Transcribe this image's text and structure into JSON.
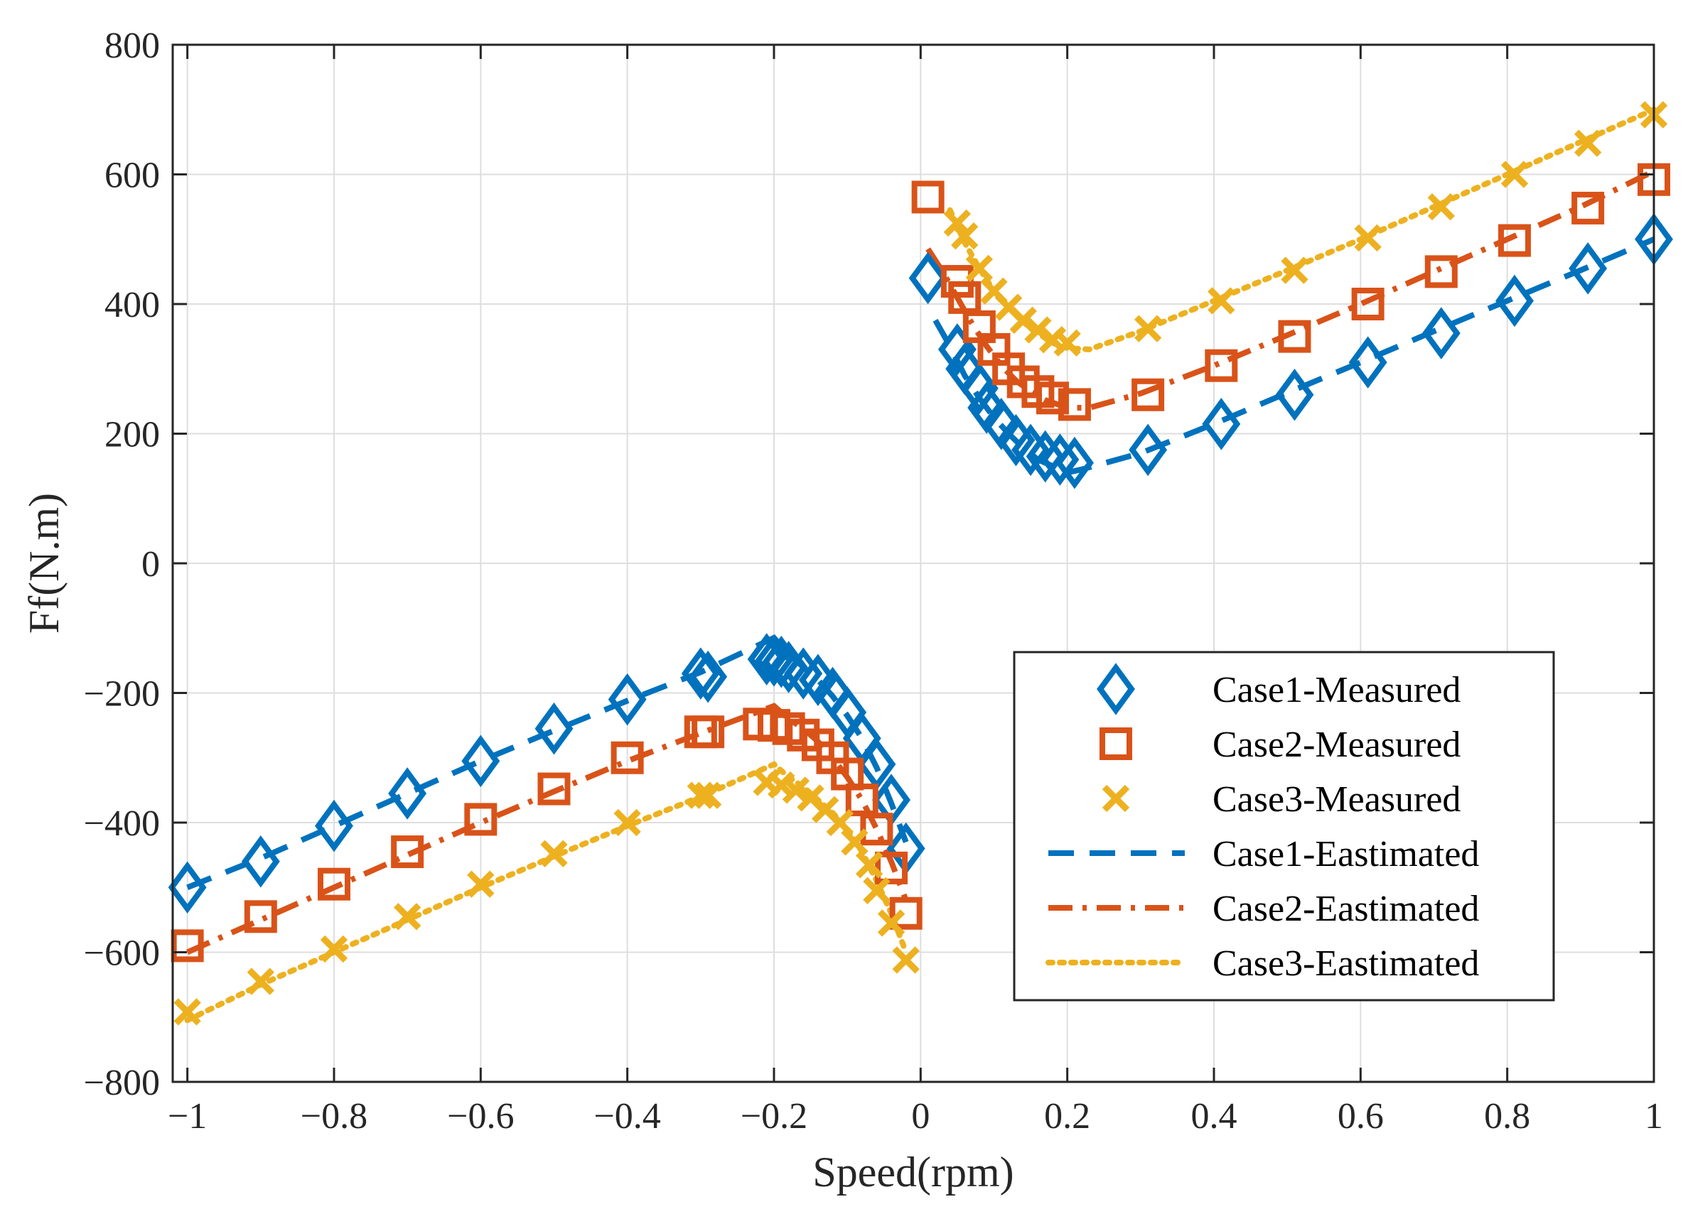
{
  "chart_data": {
    "type": "scatter",
    "title": "",
    "xlabel": "Speed(rpm)",
    "ylabel": "Ff(N.m)",
    "xlim": [
      -1.02,
      1
    ],
    "ylim": [
      -800,
      800
    ],
    "grid": true,
    "legend_position": "bottom-right",
    "x_ticks": [
      -1,
      -0.8,
      -0.6,
      -0.4,
      -0.2,
      0,
      0.2,
      0.4,
      0.6,
      0.8,
      1
    ],
    "x_tick_labels": [
      "−1",
      "−0.8",
      "−0.6",
      "−0.4",
      "−0.2",
      "0",
      "0.2",
      "0.4",
      "0.6",
      "0.8",
      "1"
    ],
    "y_ticks": [
      -800,
      -600,
      -400,
      -200,
      0,
      200,
      400,
      600,
      800
    ],
    "y_tick_labels": [
      "−800",
      "−600",
      "−400",
      "−200",
      "0",
      "200",
      "400",
      "600",
      "800"
    ],
    "series": [
      {
        "name": "Case1-Measured",
        "kind": "marker",
        "marker": "diamond",
        "color": "#0072BD",
        "points": [
          [
            -1.0,
            -500
          ],
          [
            -0.9,
            -460
          ],
          [
            -0.8,
            -405
          ],
          [
            -0.7,
            -355
          ],
          [
            -0.6,
            -305
          ],
          [
            -0.5,
            -255
          ],
          [
            -0.4,
            -210
          ],
          [
            -0.3,
            -170
          ],
          [
            -0.29,
            -175
          ],
          [
            -0.21,
            -148
          ],
          [
            -0.2,
            -150
          ],
          [
            -0.19,
            -152
          ],
          [
            -0.18,
            -160
          ],
          [
            -0.16,
            -170
          ],
          [
            -0.14,
            -180
          ],
          [
            -0.12,
            -200
          ],
          [
            -0.1,
            -230
          ],
          [
            -0.08,
            -270
          ],
          [
            -0.06,
            -310
          ],
          [
            -0.04,
            -365
          ],
          [
            -0.02,
            -440
          ],
          [
            0.01,
            440
          ],
          [
            0.05,
            330
          ],
          [
            0.06,
            300
          ],
          [
            0.08,
            270
          ],
          [
            0.09,
            240
          ],
          [
            0.11,
            215
          ],
          [
            0.13,
            190
          ],
          [
            0.15,
            175
          ],
          [
            0.17,
            165
          ],
          [
            0.19,
            160
          ],
          [
            0.21,
            155
          ],
          [
            0.31,
            175
          ],
          [
            0.41,
            215
          ],
          [
            0.51,
            260
          ],
          [
            0.61,
            310
          ],
          [
            0.71,
            355
          ],
          [
            0.81,
            405
          ],
          [
            0.91,
            455
          ],
          [
            1.0,
            500
          ]
        ]
      },
      {
        "name": "Case2-Measured",
        "kind": "marker",
        "marker": "square",
        "color": "#D95319",
        "points": [
          [
            -1.0,
            -590
          ],
          [
            -0.9,
            -545
          ],
          [
            -0.8,
            -495
          ],
          [
            -0.7,
            -445
          ],
          [
            -0.6,
            -395
          ],
          [
            -0.5,
            -348
          ],
          [
            -0.4,
            -300
          ],
          [
            -0.3,
            -260
          ],
          [
            -0.29,
            -260
          ],
          [
            -0.22,
            -248
          ],
          [
            -0.2,
            -250
          ],
          [
            -0.18,
            -255
          ],
          [
            -0.16,
            -265
          ],
          [
            -0.14,
            -280
          ],
          [
            -0.12,
            -300
          ],
          [
            -0.1,
            -325
          ],
          [
            -0.08,
            -365
          ],
          [
            -0.06,
            -410
          ],
          [
            -0.04,
            -470
          ],
          [
            -0.02,
            -540
          ],
          [
            0.01,
            565
          ],
          [
            0.05,
            435
          ],
          [
            0.06,
            410
          ],
          [
            0.08,
            365
          ],
          [
            0.1,
            330
          ],
          [
            0.12,
            300
          ],
          [
            0.14,
            280
          ],
          [
            0.16,
            265
          ],
          [
            0.18,
            255
          ],
          [
            0.21,
            245
          ],
          [
            0.31,
            260
          ],
          [
            0.41,
            305
          ],
          [
            0.51,
            350
          ],
          [
            0.61,
            400
          ],
          [
            0.71,
            450
          ],
          [
            0.81,
            498
          ],
          [
            0.91,
            548
          ],
          [
            1.0,
            592
          ]
        ]
      },
      {
        "name": "Case3-Measured",
        "kind": "marker",
        "marker": "cross",
        "color": "#EDB120",
        "points": [
          [
            -1.0,
            -692
          ],
          [
            -0.9,
            -645
          ],
          [
            -0.8,
            -595
          ],
          [
            -0.7,
            -545
          ],
          [
            -0.6,
            -495
          ],
          [
            -0.5,
            -448
          ],
          [
            -0.4,
            -400
          ],
          [
            -0.3,
            -358
          ],
          [
            -0.29,
            -358
          ],
          [
            -0.21,
            -338
          ],
          [
            -0.19,
            -342
          ],
          [
            -0.17,
            -350
          ],
          [
            -0.15,
            -362
          ],
          [
            -0.13,
            -380
          ],
          [
            -0.11,
            -400
          ],
          [
            -0.09,
            -430
          ],
          [
            -0.07,
            -465
          ],
          [
            -0.06,
            -505
          ],
          [
            -0.04,
            -555
          ],
          [
            -0.02,
            -612
          ],
          [
            0.05,
            525
          ],
          [
            0.06,
            505
          ],
          [
            0.08,
            455
          ],
          [
            0.1,
            420
          ],
          [
            0.12,
            395
          ],
          [
            0.14,
            375
          ],
          [
            0.16,
            360
          ],
          [
            0.18,
            345
          ],
          [
            0.2,
            340
          ],
          [
            0.31,
            362
          ],
          [
            0.41,
            405
          ],
          [
            0.51,
            452
          ],
          [
            0.61,
            502
          ],
          [
            0.71,
            550
          ],
          [
            0.81,
            600
          ],
          [
            0.91,
            648
          ],
          [
            1.0,
            692
          ]
        ]
      },
      {
        "name": "Case1-Eastimated",
        "kind": "line",
        "dash": "dashed",
        "color": "#0072BD",
        "segments": [
          [
            [
              -1.0,
              -500
            ],
            [
              -0.9,
              -455
            ],
            [
              -0.8,
              -405
            ],
            [
              -0.7,
              -355
            ],
            [
              -0.6,
              -305
            ],
            [
              -0.5,
              -258
            ],
            [
              -0.4,
              -212
            ],
            [
              -0.3,
              -168
            ],
            [
              -0.2,
              -115
            ],
            [
              -0.18,
              -140
            ],
            [
              -0.16,
              -160
            ],
            [
              -0.14,
              -180
            ],
            [
              -0.12,
              -205
            ],
            [
              -0.1,
              -235
            ],
            [
              -0.08,
              -270
            ],
            [
              -0.06,
              -315
            ],
            [
              -0.04,
              -370
            ],
            [
              -0.02,
              -430
            ]
          ],
          [
            [
              0.02,
              375
            ],
            [
              0.04,
              335
            ],
            [
              0.06,
              290
            ],
            [
              0.08,
              255
            ],
            [
              0.1,
              225
            ],
            [
              0.12,
              200
            ],
            [
              0.14,
              178
            ],
            [
              0.16,
              160
            ],
            [
              0.18,
              150
            ],
            [
              0.2,
              140
            ],
            [
              0.22,
              145
            ],
            [
              0.3,
              170
            ],
            [
              0.4,
              215
            ],
            [
              0.5,
              263
            ],
            [
              0.6,
              310
            ],
            [
              0.7,
              358
            ],
            [
              0.8,
              405
            ],
            [
              0.9,
              452
            ],
            [
              1.0,
              500
            ]
          ]
        ]
      },
      {
        "name": "Case2-Eastimated",
        "kind": "line",
        "dash": "dashdot",
        "color": "#D95319",
        "segments": [
          [
            [
              -1.0,
              -600
            ],
            [
              -0.9,
              -550
            ],
            [
              -0.8,
              -500
            ],
            [
              -0.7,
              -450
            ],
            [
              -0.6,
              -400
            ],
            [
              -0.5,
              -352
            ],
            [
              -0.4,
              -305
            ],
            [
              -0.3,
              -262
            ],
            [
              -0.2,
              -220
            ],
            [
              -0.18,
              -240
            ],
            [
              -0.16,
              -255
            ],
            [
              -0.14,
              -275
            ],
            [
              -0.12,
              -300
            ],
            [
              -0.1,
              -330
            ],
            [
              -0.08,
              -365
            ],
            [
              -0.06,
              -410
            ],
            [
              -0.04,
              -460
            ],
            [
              -0.02,
              -520
            ]
          ],
          [
            [
              0.01,
              485
            ],
            [
              0.03,
              450
            ],
            [
              0.05,
              410
            ],
            [
              0.07,
              370
            ],
            [
              0.09,
              335
            ],
            [
              0.11,
              305
            ],
            [
              0.13,
              282
            ],
            [
              0.15,
              265
            ],
            [
              0.17,
              252
            ],
            [
              0.2,
              240
            ],
            [
              0.23,
              240
            ],
            [
              0.3,
              262
            ],
            [
              0.4,
              305
            ],
            [
              0.5,
              352
            ],
            [
              0.6,
              400
            ],
            [
              0.7,
              450
            ],
            [
              0.8,
              500
            ],
            [
              0.9,
              550
            ],
            [
              1.0,
              605
            ]
          ]
        ]
      },
      {
        "name": "Case3-Eastimated",
        "kind": "line",
        "dash": "dotted",
        "color": "#EDB120",
        "segments": [
          [
            [
              -1.0,
              -705
            ],
            [
              -0.9,
              -650
            ],
            [
              -0.8,
              -600
            ],
            [
              -0.7,
              -550
            ],
            [
              -0.6,
              -500
            ],
            [
              -0.5,
              -452
            ],
            [
              -0.4,
              -405
            ],
            [
              -0.3,
              -360
            ],
            [
              -0.2,
              -310
            ],
            [
              -0.18,
              -330
            ],
            [
              -0.16,
              -345
            ],
            [
              -0.14,
              -365
            ],
            [
              -0.12,
              -385
            ],
            [
              -0.1,
              -410
            ],
            [
              -0.08,
              -445
            ],
            [
              -0.06,
              -490
            ],
            [
              -0.04,
              -540
            ],
            [
              -0.02,
              -600
            ]
          ],
          [
            [
              0.04,
              545
            ],
            [
              0.06,
              495
            ],
            [
              0.08,
              455
            ],
            [
              0.1,
              420
            ],
            [
              0.12,
              395
            ],
            [
              0.14,
              372
            ],
            [
              0.16,
              355
            ],
            [
              0.18,
              340
            ],
            [
              0.2,
              332
            ],
            [
              0.23,
              330
            ],
            [
              0.3,
              358
            ],
            [
              0.4,
              405
            ],
            [
              0.5,
              452
            ],
            [
              0.6,
              500
            ],
            [
              0.7,
              550
            ],
            [
              0.8,
              600
            ],
            [
              0.9,
              650
            ],
            [
              1.0,
              700
            ]
          ]
        ]
      }
    ],
    "legend": [
      "Case1-Measured",
      "Case2-Measured",
      "Case3-Measured",
      "Case1-Eastimated",
      "Case2-Eastimated",
      "Case3-Eastimated"
    ]
  }
}
